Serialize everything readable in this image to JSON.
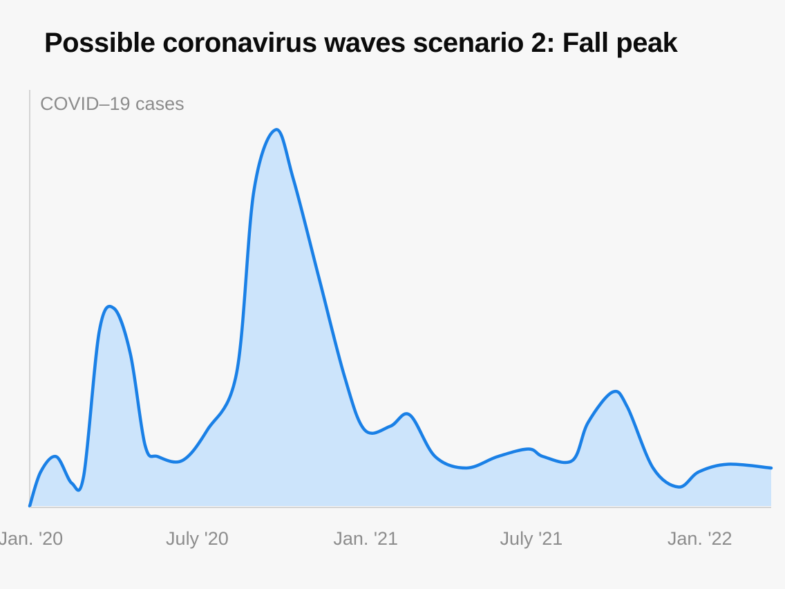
{
  "chart_data": {
    "type": "area",
    "title": "Possible coronavirus waves scenario 2: Fall peak",
    "ylabel": "COVID–19 cases",
    "xlabel": "",
    "x_ticks": [
      "Jan. '20",
      "July '20",
      "Jan. '21",
      "July '21",
      "Jan. '22"
    ],
    "x_range": [
      "2019-12-31",
      "2022-03-20"
    ],
    "y_range": [
      0,
      100
    ],
    "grid": false,
    "legend": "none",
    "colors": {
      "line": "#1a80e6",
      "fill": "#cce4fb",
      "axis": "#d4d4d4"
    },
    "series": [
      {
        "values": [
          [
            "2019-12-31",
            0
          ],
          [
            "2020-01-12",
            9
          ],
          [
            "2020-01-29",
            13
          ],
          [
            "2020-02-15",
            6
          ],
          [
            "2020-02-28",
            8
          ],
          [
            "2020-03-16",
            46
          ],
          [
            "2020-04-01",
            52
          ],
          [
            "2020-04-19",
            40
          ],
          [
            "2020-05-05",
            16
          ],
          [
            "2020-05-19",
            13
          ],
          [
            "2020-06-15",
            12
          ],
          [
            "2020-07-12",
            20
          ],
          [
            "2020-08-13",
            35
          ],
          [
            "2020-09-01",
            83
          ],
          [
            "2020-09-25",
            99
          ],
          [
            "2020-10-14",
            86
          ],
          [
            "2020-11-11",
            60
          ],
          [
            "2020-12-09",
            34
          ],
          [
            "2020-12-31",
            20
          ],
          [
            "2021-01-28",
            21
          ],
          [
            "2021-02-18",
            24
          ],
          [
            "2021-03-18",
            13
          ],
          [
            "2021-04-21",
            10
          ],
          [
            "2021-05-25",
            13
          ],
          [
            "2021-06-28",
            15
          ],
          [
            "2021-07-14",
            13
          ],
          [
            "2021-08-15",
            12
          ],
          [
            "2021-09-01",
            22
          ],
          [
            "2021-09-28",
            30
          ],
          [
            "2021-10-14",
            26
          ],
          [
            "2021-11-11",
            10
          ],
          [
            "2021-12-09",
            5
          ],
          [
            "2021-12-31",
            9
          ],
          [
            "2022-02-01",
            11
          ],
          [
            "2022-03-20",
            10
          ]
        ]
      }
    ]
  }
}
